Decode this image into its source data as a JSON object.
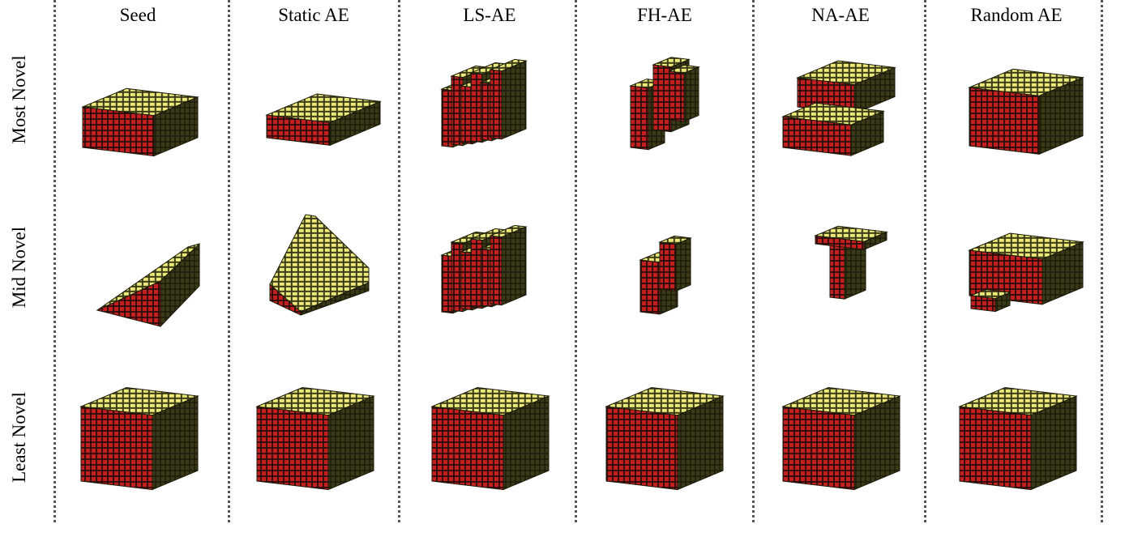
{
  "columns": [
    "Seed",
    "Static AE",
    "LS-AE",
    "FH-AE",
    "NA-AE",
    "Random AE"
  ],
  "rows": [
    "Most Novel",
    "Mid Novel",
    "Least Novel"
  ],
  "colors": {
    "top_face": "#ece97a",
    "front_face": "#c41f1f",
    "side_face": "#2f2f14",
    "edge": "#1a1a08",
    "divider": "#555555",
    "accent_dot": "#2433c0"
  },
  "cells": [
    [
      "seed-slab",
      "static-jagged",
      "ls-fins",
      "fh-towers",
      "na-stepped-box",
      "random-lattice"
    ],
    [
      "seed-ramp",
      "static-pyramid",
      "ls-fins",
      "fh-narrow",
      "na-small",
      "random-swirl"
    ],
    [
      "cube",
      "cube",
      "cube",
      "cube",
      "cube",
      "cube"
    ]
  ]
}
